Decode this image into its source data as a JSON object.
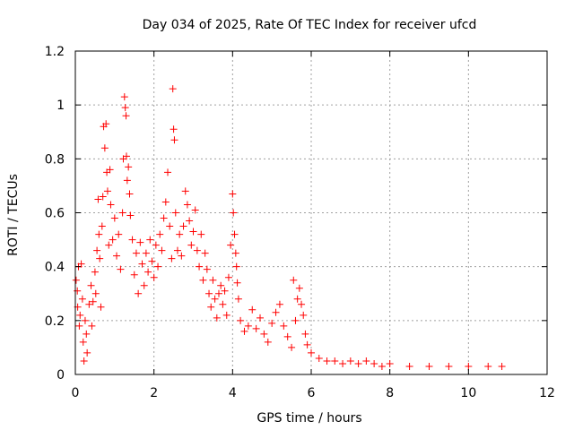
{
  "chart_data": {
    "type": "scatter",
    "title": "Day 034 of 2025, Rate Of TEC Index for receiver ufcd",
    "xlabel": "GPS time / hours",
    "ylabel": "ROTI / TECUs",
    "xlim": [
      0,
      12
    ],
    "ylim": [
      0,
      1.2
    ],
    "x_ticks": [
      0,
      2,
      4,
      6,
      8,
      10,
      12
    ],
    "x_tick_labels": [
      "0",
      "2",
      "4",
      "6",
      "8",
      "10",
      "12"
    ],
    "y_ticks": [
      0,
      0.2,
      0.4,
      0.6,
      0.8,
      1,
      1.2
    ],
    "y_tick_labels": [
      "0",
      "0.2",
      "0.4",
      "0.6",
      "0.8",
      "1",
      "1.2"
    ],
    "grid": true,
    "marker": "+",
    "marker_color": "#ff0000",
    "series": [
      {
        "name": "ROTI",
        "points": [
          [
            0.02,
            0.35
          ],
          [
            0.05,
            0.31
          ],
          [
            0.06,
            0.25
          ],
          [
            0.08,
            0.4
          ],
          [
            0.1,
            0.18
          ],
          [
            0.12,
            0.22
          ],
          [
            0.15,
            0.41
          ],
          [
            0.18,
            0.28
          ],
          [
            0.2,
            0.12
          ],
          [
            0.22,
            0.05
          ],
          [
            0.25,
            0.2
          ],
          [
            0.28,
            0.15
          ],
          [
            0.3,
            0.08
          ],
          [
            0.35,
            0.26
          ],
          [
            0.4,
            0.33
          ],
          [
            0.42,
            0.18
          ],
          [
            0.45,
            0.27
          ],
          [
            0.5,
            0.38
          ],
          [
            0.52,
            0.3
          ],
          [
            0.55,
            0.46
          ],
          [
            0.58,
            0.65
          ],
          [
            0.6,
            0.52
          ],
          [
            0.62,
            0.43
          ],
          [
            0.65,
            0.25
          ],
          [
            0.68,
            0.55
          ],
          [
            0.7,
            0.66
          ],
          [
            0.72,
            0.92
          ],
          [
            0.75,
            0.84
          ],
          [
            0.78,
            0.93
          ],
          [
            0.8,
            0.75
          ],
          [
            0.82,
            0.68
          ],
          [
            0.85,
            0.48
          ],
          [
            0.88,
            0.76
          ],
          [
            0.9,
            0.63
          ],
          [
            0.95,
            0.5
          ],
          [
            1.0,
            0.58
          ],
          [
            1.05,
            0.44
          ],
          [
            1.1,
            0.52
          ],
          [
            1.15,
            0.39
          ],
          [
            1.2,
            0.6
          ],
          [
            1.22,
            0.8
          ],
          [
            1.25,
            1.03
          ],
          [
            1.27,
            0.99
          ],
          [
            1.29,
            0.96
          ],
          [
            1.3,
            0.81
          ],
          [
            1.32,
            0.72
          ],
          [
            1.35,
            0.77
          ],
          [
            1.38,
            0.67
          ],
          [
            1.4,
            0.59
          ],
          [
            1.45,
            0.5
          ],
          [
            1.5,
            0.37
          ],
          [
            1.55,
            0.45
          ],
          [
            1.6,
            0.3
          ],
          [
            1.65,
            0.49
          ],
          [
            1.7,
            0.41
          ],
          [
            1.75,
            0.33
          ],
          [
            1.8,
            0.45
          ],
          [
            1.85,
            0.38
          ],
          [
            1.9,
            0.5
          ],
          [
            1.95,
            0.42
          ],
          [
            2.0,
            0.36
          ],
          [
            2.05,
            0.48
          ],
          [
            2.1,
            0.4
          ],
          [
            2.15,
            0.52
          ],
          [
            2.2,
            0.46
          ],
          [
            2.25,
            0.58
          ],
          [
            2.3,
            0.64
          ],
          [
            2.35,
            0.75
          ],
          [
            2.4,
            0.55
          ],
          [
            2.45,
            0.43
          ],
          [
            2.48,
            1.06
          ],
          [
            2.5,
            0.91
          ],
          [
            2.52,
            0.87
          ],
          [
            2.55,
            0.6
          ],
          [
            2.6,
            0.46
          ],
          [
            2.65,
            0.52
          ],
          [
            2.7,
            0.44
          ],
          [
            2.75,
            0.55
          ],
          [
            2.8,
            0.68
          ],
          [
            2.85,
            0.63
          ],
          [
            2.9,
            0.57
          ],
          [
            2.95,
            0.48
          ],
          [
            3.0,
            0.53
          ],
          [
            3.05,
            0.61
          ],
          [
            3.1,
            0.46
          ],
          [
            3.15,
            0.4
          ],
          [
            3.2,
            0.52
          ],
          [
            3.25,
            0.35
          ],
          [
            3.3,
            0.45
          ],
          [
            3.35,
            0.39
          ],
          [
            3.4,
            0.3
          ],
          [
            3.45,
            0.25
          ],
          [
            3.5,
            0.35
          ],
          [
            3.55,
            0.28
          ],
          [
            3.6,
            0.21
          ],
          [
            3.65,
            0.3
          ],
          [
            3.7,
            0.33
          ],
          [
            3.75,
            0.26
          ],
          [
            3.8,
            0.31
          ],
          [
            3.85,
            0.22
          ],
          [
            3.9,
            0.36
          ],
          [
            3.95,
            0.48
          ],
          [
            4.0,
            0.67
          ],
          [
            4.02,
            0.6
          ],
          [
            4.05,
            0.52
          ],
          [
            4.08,
            0.45
          ],
          [
            4.1,
            0.4
          ],
          [
            4.12,
            0.34
          ],
          [
            4.15,
            0.28
          ],
          [
            4.2,
            0.2
          ],
          [
            4.3,
            0.16
          ],
          [
            4.4,
            0.18
          ],
          [
            4.5,
            0.24
          ],
          [
            4.6,
            0.17
          ],
          [
            4.7,
            0.21
          ],
          [
            4.8,
            0.15
          ],
          [
            4.9,
            0.12
          ],
          [
            5.0,
            0.19
          ],
          [
            5.1,
            0.23
          ],
          [
            5.2,
            0.26
          ],
          [
            5.3,
            0.18
          ],
          [
            5.4,
            0.14
          ],
          [
            5.5,
            0.1
          ],
          [
            5.55,
            0.35
          ],
          [
            5.6,
            0.2
          ],
          [
            5.65,
            0.28
          ],
          [
            5.7,
            0.32
          ],
          [
            5.75,
            0.26
          ],
          [
            5.8,
            0.22
          ],
          [
            5.85,
            0.15
          ],
          [
            5.9,
            0.11
          ],
          [
            6.0,
            0.08
          ],
          [
            6.2,
            0.06
          ],
          [
            6.4,
            0.05
          ],
          [
            6.6,
            0.05
          ],
          [
            6.8,
            0.04
          ],
          [
            7.0,
            0.05
          ],
          [
            7.2,
            0.04
          ],
          [
            7.4,
            0.05
          ],
          [
            7.6,
            0.04
          ],
          [
            7.8,
            0.03
          ],
          [
            8.0,
            0.04
          ],
          [
            8.5,
            0.03
          ],
          [
            9.0,
            0.03
          ],
          [
            9.5,
            0.03
          ],
          [
            10.0,
            0.03
          ],
          [
            10.5,
            0.03
          ],
          [
            10.85,
            0.03
          ]
        ]
      }
    ]
  }
}
